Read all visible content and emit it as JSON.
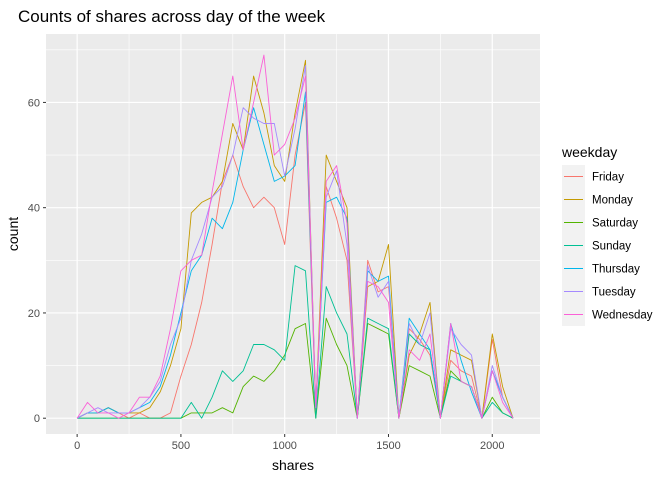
{
  "chart_data": {
    "type": "line",
    "title": "Counts of shares across day of the week",
    "xlabel": "shares",
    "ylabel": "count",
    "xlim": [
      -150,
      2230
    ],
    "ylim": [
      -3,
      73
    ],
    "xticks": [
      0,
      500,
      1000,
      1500,
      2000
    ],
    "yticks": [
      0,
      20,
      40,
      60
    ],
    "x": [
      0,
      50,
      100,
      150,
      200,
      250,
      300,
      350,
      400,
      450,
      500,
      550,
      600,
      650,
      700,
      750,
      800,
      850,
      900,
      950,
      1000,
      1050,
      1100,
      1150,
      1200,
      1250,
      1300,
      1350,
      1400,
      1450,
      1500,
      1550,
      1600,
      1650,
      1700,
      1750,
      1800,
      1850,
      1900,
      1950,
      2000,
      2050,
      2100
    ],
    "legend_title": "weekday",
    "legend_position": "right",
    "grid": true,
    "series": [
      {
        "name": "Friday",
        "color": "#F8766D",
        "values": [
          0,
          1,
          1,
          2,
          1,
          0,
          1,
          0,
          0,
          1,
          8,
          14,
          22,
          33,
          45,
          50,
          44,
          40,
          42,
          40,
          33,
          50,
          60,
          1,
          44,
          38,
          30,
          0,
          30,
          24,
          25,
          0,
          17,
          15,
          12,
          0,
          11,
          9,
          8,
          0,
          15,
          4,
          0
        ]
      },
      {
        "name": "Monday",
        "color": "#C49A00",
        "values": [
          0,
          1,
          1,
          2,
          1,
          1,
          1,
          2,
          5,
          10,
          17,
          39,
          41,
          42,
          45,
          56,
          51,
          65,
          58,
          48,
          45,
          58,
          68,
          2,
          50,
          45,
          40,
          0,
          25,
          26,
          33,
          0,
          12,
          16,
          22,
          0,
          13,
          12,
          11,
          0,
          16,
          6,
          0
        ]
      },
      {
        "name": "Saturday",
        "color": "#53B400",
        "values": [
          0,
          0,
          0,
          0,
          0,
          0,
          0,
          0,
          0,
          0,
          0,
          1,
          1,
          1,
          2,
          1,
          6,
          8,
          7,
          9,
          12,
          17,
          18,
          0,
          19,
          14,
          10,
          0,
          18,
          17,
          16,
          0,
          10,
          9,
          8,
          0,
          9,
          7,
          6,
          0,
          4,
          1,
          0
        ]
      },
      {
        "name": "Sunday",
        "color": "#00C094",
        "values": [
          0,
          0,
          0,
          0,
          0,
          0,
          0,
          0,
          0,
          0,
          0,
          3,
          0,
          4,
          9,
          7,
          9,
          14,
          14,
          13,
          11,
          29,
          28,
          0,
          25,
          20,
          16,
          0,
          19,
          18,
          17,
          0,
          16,
          14,
          13,
          0,
          8,
          7,
          6,
          0,
          3,
          1,
          0
        ]
      },
      {
        "name": "Thursday",
        "color": "#00B6EB",
        "values": [
          0,
          1,
          1,
          2,
          1,
          1,
          2,
          3,
          6,
          12,
          20,
          28,
          31,
          38,
          36,
          41,
          51,
          59,
          52,
          45,
          46,
          48,
          62,
          2,
          41,
          42,
          38,
          0,
          28,
          26,
          27,
          0,
          19,
          16,
          13,
          0,
          18,
          11,
          5,
          0,
          9,
          4,
          0
        ]
      },
      {
        "name": "Tuesday",
        "color": "#A58AFF",
        "values": [
          0,
          1,
          2,
          1,
          1,
          1,
          2,
          4,
          7,
          14,
          19,
          30,
          35,
          42,
          44,
          50,
          59,
          57,
          56,
          56,
          46,
          55,
          67,
          2,
          42,
          47,
          33,
          0,
          29,
          23,
          26,
          0,
          18,
          14,
          20,
          0,
          17,
          14,
          12,
          0,
          10,
          4,
          0
        ]
      },
      {
        "name": "Wednesday",
        "color": "#FB61D7",
        "values": [
          0,
          3,
          1,
          1,
          0,
          1,
          4,
          4,
          8,
          17,
          28,
          30,
          31,
          43,
          54,
          65,
          51,
          60,
          69,
          50,
          52,
          57,
          65,
          2,
          45,
          48,
          37,
          0,
          26,
          25,
          22,
          0,
          13,
          11,
          16,
          0,
          18,
          7,
          6,
          0,
          9,
          3,
          0
        ]
      }
    ]
  }
}
